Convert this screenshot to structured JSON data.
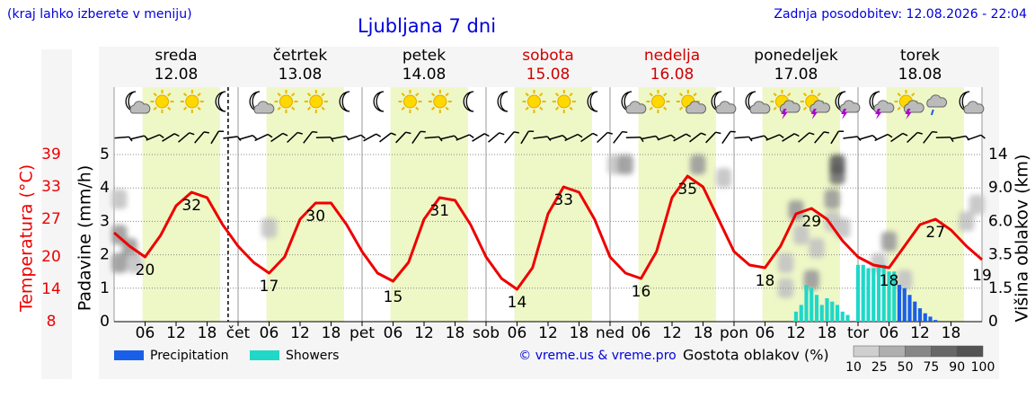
{
  "header": {
    "note": "(kraj lahko izberete v meniju)",
    "title": "Ljubljana 7 dni",
    "updated": "Zadnja posodobitev: 12.08.2026 - 22:04"
  },
  "chart_data": {
    "type": "meteogram",
    "days": [
      {
        "name": "sreda",
        "date": "12.08",
        "color": "#000000"
      },
      {
        "name": "četrtek",
        "date": "13.08",
        "color": "#000000"
      },
      {
        "name": "petek",
        "date": "14.08",
        "color": "#000000"
      },
      {
        "name": "sobota",
        "date": "15.08",
        "color": "#d00000"
      },
      {
        "name": "nedelja",
        "date": "16.08",
        "color": "#d00000"
      },
      {
        "name": "ponedeljek",
        "date": "17.08",
        "color": "#000000"
      },
      {
        "name": "torek",
        "date": "18.08",
        "color": "#000000"
      }
    ],
    "xlim": [
      0,
      168
    ],
    "xticks": [
      {
        "value": 6,
        "label": "06"
      },
      {
        "value": 12,
        "label": "12"
      },
      {
        "value": 18,
        "label": "18"
      },
      {
        "value": 24,
        "label": "čet"
      },
      {
        "value": 30,
        "label": "06"
      },
      {
        "value": 36,
        "label": "12"
      },
      {
        "value": 42,
        "label": "18"
      },
      {
        "value": 48,
        "label": "pet"
      },
      {
        "value": 54,
        "label": "06"
      },
      {
        "value": 60,
        "label": "12"
      },
      {
        "value": 66,
        "label": "18"
      },
      {
        "value": 72,
        "label": "sob"
      },
      {
        "value": 78,
        "label": "06"
      },
      {
        "value": 84,
        "label": "12"
      },
      {
        "value": 90,
        "label": "18"
      },
      {
        "value": 96,
        "label": "ned"
      },
      {
        "value": 102,
        "label": "06"
      },
      {
        "value": 108,
        "label": "12"
      },
      {
        "value": 114,
        "label": "18"
      },
      {
        "value": 120,
        "label": "pon"
      },
      {
        "value": 126,
        "label": "06"
      },
      {
        "value": 132,
        "label": "12"
      },
      {
        "value": 138,
        "label": "18"
      },
      {
        "value": 144,
        "label": "tor"
      },
      {
        "value": 150,
        "label": "06"
      },
      {
        "value": 156,
        "label": "12"
      },
      {
        "value": 162,
        "label": "18"
      }
    ],
    "now": 22.07,
    "ylabel": "Padavine (mm/h)",
    "ylim": [
      0,
      5
    ],
    "yticks": [
      0,
      1,
      2,
      3,
      4,
      5
    ],
    "grid": true,
    "y2label": "Višina oblakov (km)",
    "y2lim": [
      0,
      14
    ],
    "y2ticks": [
      0,
      1.5,
      3.5,
      {
        "value": 6,
        "label": "6.0"
      },
      {
        "value": 9,
        "label": "9.0"
      },
      14
    ],
    "temperature": {
      "label": "Temperatura (°C)",
      "color": "#ee0000",
      "lim": [
        8,
        39
      ],
      "ticks": [
        8,
        14,
        20,
        27,
        33,
        39
      ],
      "x": [
        0,
        3,
        6,
        9,
        12,
        15,
        18,
        21,
        24,
        27,
        30,
        33,
        36,
        39,
        42,
        45,
        48,
        51,
        54,
        57,
        60,
        63,
        66,
        69,
        72,
        75,
        78,
        81,
        84,
        87,
        90,
        93,
        96,
        99,
        102,
        105,
        108,
        111,
        114,
        117,
        120,
        123,
        126,
        129,
        132,
        135,
        138,
        141,
        144,
        147,
        150,
        153,
        156,
        159,
        162,
        165,
        168
      ],
      "values": [
        24.5,
        22,
        20,
        24,
        29.5,
        32,
        31,
        26,
        22,
        19,
        17,
        20,
        27,
        30,
        30,
        26,
        21,
        17,
        15.5,
        19,
        27,
        31,
        30.5,
        26,
        20,
        16,
        14,
        18,
        28,
        33,
        32,
        27,
        20,
        17,
        16,
        21,
        31,
        35,
        33,
        27,
        21,
        18.5,
        18,
        22,
        28,
        29,
        27,
        23,
        20,
        18.5,
        18,
        22,
        26,
        27,
        25,
        22,
        19.5
      ],
      "annotations": [
        {
          "x": 6,
          "value": 20
        },
        {
          "x": 15,
          "value": 32
        },
        {
          "x": 30,
          "value": 17
        },
        {
          "x": 39,
          "value": 30
        },
        {
          "x": 54,
          "value": 15
        },
        {
          "x": 63,
          "value": 31
        },
        {
          "x": 78,
          "value": 14
        },
        {
          "x": 87,
          "value": 33
        },
        {
          "x": 102,
          "value": 16
        },
        {
          "x": 111,
          "value": 35
        },
        {
          "x": 126,
          "value": 18
        },
        {
          "x": 135,
          "value": 29
        },
        {
          "x": 150,
          "value": 18
        },
        {
          "x": 159,
          "value": 27
        },
        {
          "x": 168,
          "value": 19
        }
      ]
    },
    "series": [
      {
        "name": "Precipitation",
        "color": "#1a5fe8",
        "x": [
          152,
          153,
          154,
          155,
          156,
          157,
          158,
          159
        ],
        "values": [
          1.1,
          1.0,
          0.8,
          0.6,
          0.4,
          0.25,
          0.15,
          0.05
        ]
      },
      {
        "name": "Showers",
        "color": "#1fd8c8",
        "x": [
          132,
          133,
          134,
          135,
          136,
          137,
          138,
          139,
          140,
          141,
          142,
          144,
          145,
          146,
          147,
          148,
          149,
          150,
          151
        ],
        "values": [
          0.3,
          0.5,
          1.1,
          1.0,
          0.8,
          0.5,
          0.7,
          0.6,
          0.5,
          0.3,
          0.2,
          1.7,
          1.7,
          1.6,
          1.6,
          1.7,
          1.7,
          1.5,
          1.5
        ]
      }
    ],
    "clouds": {
      "name": "Gostota oblakov (%)",
      "levels": [
        10,
        25,
        50,
        75,
        90,
        100
      ],
      "cells": [
        {
          "x": 1,
          "alt": 8,
          "density": 25
        },
        {
          "x": 1,
          "alt": 5,
          "density": 50
        },
        {
          "x": 3,
          "alt": 4,
          "density": 50
        },
        {
          "x": 4,
          "alt": 3,
          "density": 25
        },
        {
          "x": 1,
          "alt": 3,
          "density": 50
        },
        {
          "x": 30,
          "alt": 5.5,
          "density": 25
        },
        {
          "x": 97,
          "alt": 12.5,
          "density": 25
        },
        {
          "x": 99,
          "alt": 12.5,
          "density": 50
        },
        {
          "x": 113,
          "alt": 12.5,
          "density": 50
        },
        {
          "x": 118,
          "alt": 10.5,
          "density": 25
        },
        {
          "x": 130,
          "alt": 3,
          "density": 25
        },
        {
          "x": 133,
          "alt": 5,
          "density": 25
        },
        {
          "x": 132,
          "alt": 7,
          "density": 50
        },
        {
          "x": 136,
          "alt": 4,
          "density": 25
        },
        {
          "x": 139,
          "alt": 6,
          "density": 25
        },
        {
          "x": 135,
          "alt": 2,
          "density": 50
        },
        {
          "x": 130,
          "alt": 1.5,
          "density": 25
        },
        {
          "x": 140,
          "alt": 11,
          "density": 75
        },
        {
          "x": 140,
          "alt": 12.5,
          "density": 90
        },
        {
          "x": 139,
          "alt": 8,
          "density": 50
        },
        {
          "x": 141,
          "alt": 5.5,
          "density": 25
        },
        {
          "x": 148,
          "alt": 3,
          "density": 25
        },
        {
          "x": 150,
          "alt": 4.5,
          "density": 50
        },
        {
          "x": 153,
          "alt": 2,
          "density": 25
        },
        {
          "x": 165,
          "alt": 6,
          "density": 25
        },
        {
          "x": 167,
          "alt": 7.5,
          "density": 25
        }
      ]
    },
    "credit": "© vreme.us & vreme.pro"
  }
}
